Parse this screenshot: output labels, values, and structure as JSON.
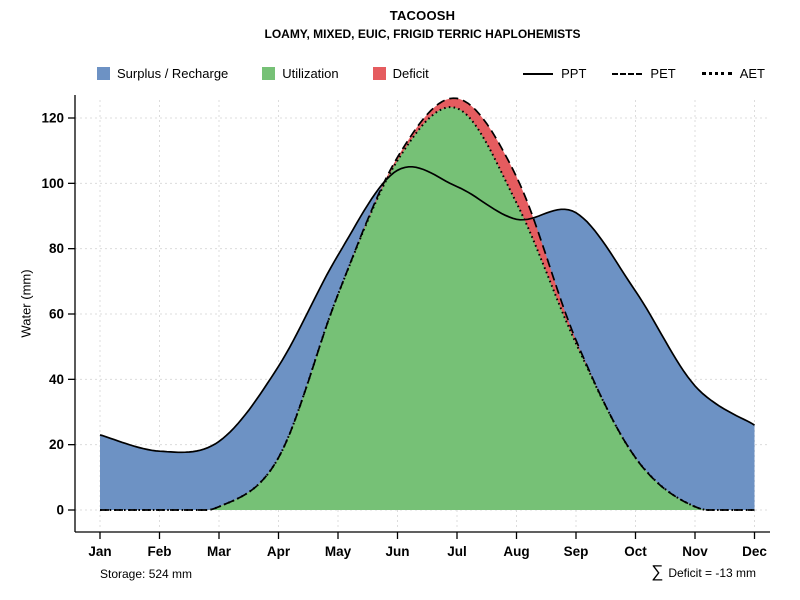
{
  "chart_data": {
    "type": "area",
    "title": "TACOOSH",
    "subtitle": "LOAMY, MIXED, EUIC, FRIGID TERRIC HAPLOHEMISTS",
    "ylabel": "Water (mm)",
    "xlabel": "",
    "categories": [
      "Jan",
      "Feb",
      "Mar",
      "Apr",
      "May",
      "Jun",
      "Jul",
      "Aug",
      "Sep",
      "Oct",
      "Nov",
      "Dec"
    ],
    "ylim": [
      0,
      130
    ],
    "yticks": [
      0,
      20,
      40,
      60,
      80,
      100,
      120
    ],
    "grid": true,
    "legend_position": "top",
    "series": [
      {
        "name": "PPT",
        "style": "solid",
        "color": "#000000",
        "values": [
          23,
          18,
          21,
          44,
          78,
          104,
          99,
          89,
          91,
          67,
          38,
          26
        ]
      },
      {
        "name": "PET",
        "style": "dashed",
        "color": "#000000",
        "values": [
          0,
          0,
          1,
          16,
          66,
          108,
          126,
          102,
          52,
          16,
          1,
          0
        ]
      },
      {
        "name": "AET",
        "style": "dotted",
        "color": "#000000",
        "values": [
          0,
          0,
          1,
          16,
          66,
          107,
          123,
          94,
          51,
          16,
          1,
          0
        ]
      }
    ],
    "areas": [
      {
        "name": "Surplus / Recharge",
        "color": "#6d92c4",
        "rule": "between AET and PPT where PPT > AET"
      },
      {
        "name": "Utilization",
        "color": "#76c176",
        "rule": "under AET"
      },
      {
        "name": "Deficit",
        "color": "#e55c5f",
        "rule": "between AET and PET where PET > AET"
      }
    ],
    "annotations": {
      "storage": "Storage: 524 mm",
      "deficit_symbol": "∑",
      "deficit": "Deficit = -13 mm"
    }
  }
}
